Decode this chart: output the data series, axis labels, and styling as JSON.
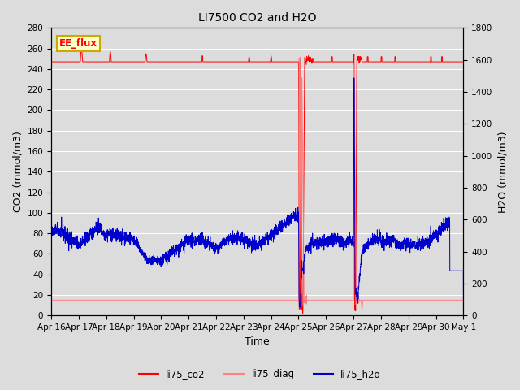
{
  "title": "LI7500 CO2 and H2O",
  "xlabel": "Time",
  "ylabel_left": "CO2 (mmol/m3)",
  "ylabel_right": "H2O (mmol/m3)",
  "ylim_left": [
    0,
    280
  ],
  "ylim_right": [
    0,
    1800
  ],
  "yticks_left": [
    0,
    20,
    40,
    60,
    80,
    100,
    120,
    140,
    160,
    180,
    200,
    220,
    240,
    260,
    280
  ],
  "yticks_right": [
    0,
    200,
    400,
    600,
    800,
    1000,
    1200,
    1400,
    1600,
    1800
  ],
  "xtick_labels": [
    "Apr 16",
    "Apr 17",
    "Apr 18",
    "Apr 19",
    "Apr 20",
    "Apr 21",
    "Apr 22",
    "Apr 23",
    "Apr 24",
    "Apr 25",
    "Apr 26",
    "Apr 27",
    "Apr 28",
    "Apr 29",
    "Apr 30",
    "May 1"
  ],
  "background_color": "#dcdcdc",
  "plot_bg_color": "#dcdcdc",
  "grid_color": "#ffffff",
  "co2_color": "#ff0000",
  "diag_color": "#ff8080",
  "h2o_color": "#0000cc",
  "legend_label_co2": "li75_co2",
  "legend_label_diag": "li75_diag",
  "legend_label_h2o": "li75_h2o",
  "annotation_text": "EE_flux",
  "annotation_bg": "#ffffcc",
  "annotation_border": "#ccaa00",
  "title_fontsize": 10,
  "axis_fontsize": 9,
  "tick_fontsize": 7.5
}
